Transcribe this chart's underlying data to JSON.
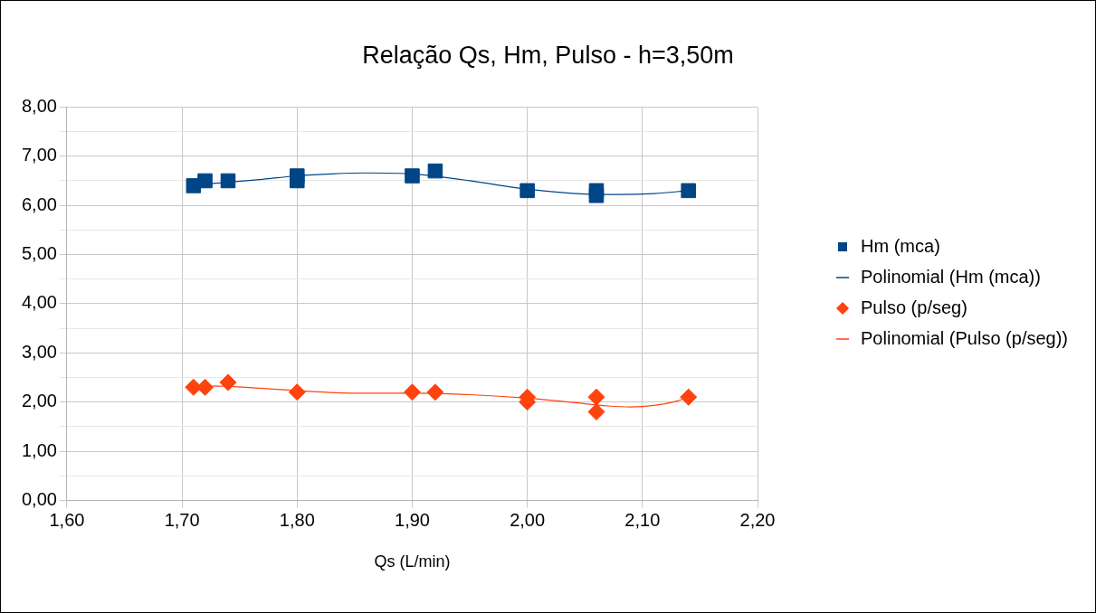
{
  "chart_data": {
    "type": "scatter",
    "title": "Relação Qs, Hm, Pulso - h=3,50m",
    "xlabel": "Qs (L/min)",
    "xlim": [
      1.6,
      2.2
    ],
    "xticks": [
      {
        "value": 1.6,
        "label": "1,60"
      },
      {
        "value": 1.7,
        "label": "1,70"
      },
      {
        "value": 1.8,
        "label": "1,80"
      },
      {
        "value": 1.9,
        "label": "1,90"
      },
      {
        "value": 2.0,
        "label": "2,00"
      },
      {
        "value": 2.1,
        "label": "2,10"
      },
      {
        "value": 2.2,
        "label": "2,20"
      }
    ],
    "ylim": [
      0,
      8
    ],
    "yticks": [
      {
        "value": 0,
        "label": "0,00"
      },
      {
        "value": 0.5,
        "label": null
      },
      {
        "value": 1,
        "label": "1,00"
      },
      {
        "value": 1.5,
        "label": null
      },
      {
        "value": 2,
        "label": "2,00"
      },
      {
        "value": 2.5,
        "label": null
      },
      {
        "value": 3,
        "label": "3,00"
      },
      {
        "value": 3.5,
        "label": null
      },
      {
        "value": 4,
        "label": "4,00"
      },
      {
        "value": 4.5,
        "label": null
      },
      {
        "value": 5,
        "label": "5,00"
      },
      {
        "value": 5.5,
        "label": null
      },
      {
        "value": 6,
        "label": "6,00"
      },
      {
        "value": 6.5,
        "label": null
      },
      {
        "value": 7,
        "label": "7,00"
      },
      {
        "value": 7.5,
        "label": null
      },
      {
        "value": 8,
        "label": "8,00"
      }
    ],
    "grid": true,
    "legend": "right",
    "series": [
      {
        "name": "Hm (mca)",
        "type": "scatter",
        "marker": "square",
        "color": "#004586",
        "x": [
          1.71,
          1.72,
          1.74,
          1.8,
          1.8,
          1.9,
          1.92,
          2.0,
          2.06,
          2.06,
          2.14
        ],
        "values": [
          6.4,
          6.5,
          6.5,
          6.5,
          6.6,
          6.6,
          6.7,
          6.3,
          6.2,
          6.3,
          6.3
        ]
      },
      {
        "name": "Polinomial (Hm (mca))",
        "type": "line",
        "marker": "none",
        "color": "#004586",
        "x": [
          1.71,
          1.74,
          1.77,
          1.8,
          1.83,
          1.86,
          1.9,
          1.95,
          2.0,
          2.05,
          2.08,
          2.11,
          2.14
        ],
        "values": [
          6.42,
          6.47,
          6.53,
          6.6,
          6.64,
          6.66,
          6.64,
          6.5,
          6.33,
          6.23,
          6.22,
          6.24,
          6.3
        ]
      },
      {
        "name": "Pulso (p/seg)",
        "type": "scatter",
        "marker": "diamond",
        "color": "#ff420e",
        "x": [
          1.71,
          1.72,
          1.74,
          1.8,
          1.9,
          1.92,
          2.0,
          2.0,
          2.06,
          2.06,
          2.14
        ],
        "values": [
          2.3,
          2.3,
          2.4,
          2.2,
          2.2,
          2.2,
          2.1,
          2.0,
          2.1,
          1.8,
          2.1
        ]
      },
      {
        "name": "Polinomial (Pulso (p/seg))",
        "type": "line",
        "marker": "none",
        "color": "#ff420e",
        "x": [
          1.71,
          1.74,
          1.8,
          1.85,
          1.9,
          1.95,
          2.0,
          2.04,
          2.07,
          2.09,
          2.11,
          2.13,
          2.14
        ],
        "values": [
          2.33,
          2.32,
          2.23,
          2.18,
          2.18,
          2.15,
          2.08,
          1.99,
          1.92,
          1.9,
          1.93,
          2.02,
          2.1
        ]
      }
    ]
  }
}
